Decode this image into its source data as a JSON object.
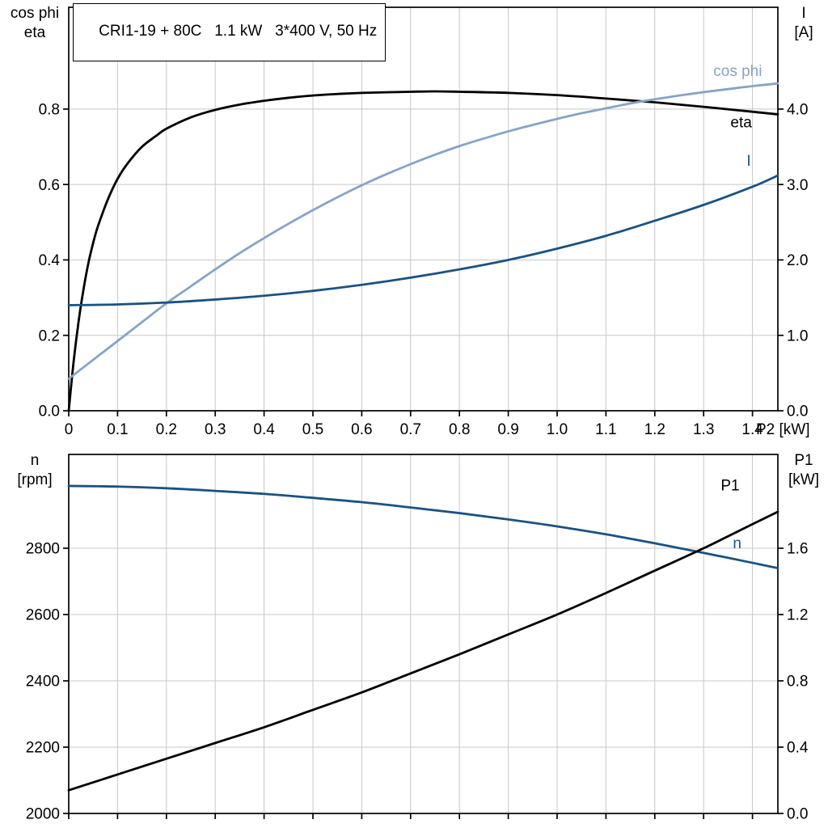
{
  "title": "CRI1-19 + 80C   1.1 kW   3*400 V, 50 Hz",
  "colors": {
    "black": "#000000",
    "light_blue": "#86A4C5",
    "dark_blue": "#1A5282",
    "grid": "#C8C8C8",
    "axis": "#000000",
    "background": "#FFFFFF"
  },
  "axis_corner_labels": {
    "top_left_1": "cos phi",
    "top_left_2": "eta",
    "top_right_1": "I",
    "top_right_2": "[A]",
    "bottom_left_1": "n",
    "bottom_left_2": "[rpm]",
    "bottom_right_1": "P1",
    "bottom_right_2": "[kW]"
  },
  "chart_data": [
    {
      "type": "line",
      "title": "CRI1-19 + 80C   1.1 kW   3*400 V, 50 Hz",
      "x_axis": {
        "label": "P2 [kW]",
        "min": 0,
        "max": 1.452,
        "ticks": [
          0,
          0.1,
          0.2,
          0.3,
          0.4,
          0.5,
          0.6,
          0.7,
          0.8,
          0.9,
          1.0,
          1.1,
          1.2,
          1.3,
          1.4
        ],
        "tick_labels": [
          "0",
          "0.1",
          "0.2",
          "0.3",
          "0.4",
          "0.5",
          "0.6",
          "0.7",
          "0.8",
          "0.9",
          "1.0",
          "1.1",
          "1.2",
          "1.3",
          "1.4"
        ],
        "show_tick_labels": true
      },
      "y_left_axis": {
        "label": "cos phi / eta",
        "min": 0,
        "max": 1.07,
        "ticks": [
          0,
          0.2,
          0.4,
          0.6,
          0.8
        ],
        "tick_labels": [
          "0.0",
          "0.2",
          "0.4",
          "0.6",
          "0.8"
        ]
      },
      "y_right_axis": {
        "label": "I [A]",
        "min": 0,
        "max": 5.35,
        "ticks": [
          0,
          1,
          2,
          3,
          4
        ],
        "tick_labels": [
          "0.0",
          "1.0",
          "2.0",
          "3.0",
          "4.0"
        ]
      },
      "grid": true,
      "legend_position": "curve-end-labels",
      "series": [
        {
          "name": "eta",
          "label": "eta",
          "color": "black",
          "y_axis": "left",
          "label_x": 1.355,
          "label_y": 0.752,
          "points": [
            [
              0,
              0
            ],
            [
              0.01,
              0.13
            ],
            [
              0.02,
              0.235
            ],
            [
              0.03,
              0.32
            ],
            [
              0.04,
              0.39
            ],
            [
              0.05,
              0.445
            ],
            [
              0.06,
              0.49
            ],
            [
              0.08,
              0.56
            ],
            [
              0.1,
              0.615
            ],
            [
              0.12,
              0.655
            ],
            [
              0.15,
              0.7
            ],
            [
              0.18,
              0.73
            ],
            [
              0.2,
              0.748
            ],
            [
              0.25,
              0.778
            ],
            [
              0.3,
              0.798
            ],
            [
              0.35,
              0.812
            ],
            [
              0.4,
              0.822
            ],
            [
              0.45,
              0.83
            ],
            [
              0.5,
              0.836
            ],
            [
              0.55,
              0.84
            ],
            [
              0.6,
              0.843
            ],
            [
              0.7,
              0.846
            ],
            [
              0.75,
              0.847
            ],
            [
              0.8,
              0.846
            ],
            [
              0.9,
              0.843
            ],
            [
              1.0,
              0.837
            ],
            [
              1.1,
              0.828
            ],
            [
              1.2,
              0.818
            ],
            [
              1.3,
              0.806
            ],
            [
              1.4,
              0.793
            ],
            [
              1.452,
              0.786
            ]
          ]
        },
        {
          "name": "cos-phi",
          "label": "cos phi",
          "color": "light_blue",
          "y_axis": "left",
          "label_x": 1.32,
          "label_y": 0.888,
          "points": [
            [
              0,
              0.085
            ],
            [
              0.05,
              0.135
            ],
            [
              0.1,
              0.185
            ],
            [
              0.15,
              0.235
            ],
            [
              0.2,
              0.285
            ],
            [
              0.25,
              0.33
            ],
            [
              0.3,
              0.375
            ],
            [
              0.35,
              0.418
            ],
            [
              0.4,
              0.458
            ],
            [
              0.45,
              0.496
            ],
            [
              0.5,
              0.532
            ],
            [
              0.55,
              0.566
            ],
            [
              0.6,
              0.598
            ],
            [
              0.65,
              0.627
            ],
            [
              0.7,
              0.654
            ],
            [
              0.75,
              0.679
            ],
            [
              0.8,
              0.702
            ],
            [
              0.85,
              0.722
            ],
            [
              0.9,
              0.741
            ],
            [
              0.95,
              0.758
            ],
            [
              1.0,
              0.774
            ],
            [
              1.05,
              0.789
            ],
            [
              1.1,
              0.802
            ],
            [
              1.15,
              0.815
            ],
            [
              1.2,
              0.826
            ],
            [
              1.25,
              0.836
            ],
            [
              1.3,
              0.845
            ],
            [
              1.35,
              0.853
            ],
            [
              1.4,
              0.861
            ],
            [
              1.452,
              0.868
            ]
          ]
        },
        {
          "name": "current",
          "label": "I",
          "color": "dark_blue",
          "y_axis": "right",
          "label_x": 1.388,
          "label_y": 3.25,
          "points": [
            [
              0,
              1.4
            ],
            [
              0.1,
              1.41
            ],
            [
              0.2,
              1.435
            ],
            [
              0.3,
              1.475
            ],
            [
              0.4,
              1.525
            ],
            [
              0.5,
              1.59
            ],
            [
              0.6,
              1.67
            ],
            [
              0.7,
              1.765
            ],
            [
              0.8,
              1.875
            ],
            [
              0.9,
              2.0
            ],
            [
              1.0,
              2.15
            ],
            [
              1.1,
              2.32
            ],
            [
              1.2,
              2.52
            ],
            [
              1.3,
              2.73
            ],
            [
              1.4,
              2.97
            ],
            [
              1.452,
              3.12
            ]
          ]
        }
      ]
    },
    {
      "type": "line",
      "title": "",
      "x_axis": {
        "label": "",
        "min": 0,
        "max": 1.452,
        "ticks": [
          0,
          0.1,
          0.2,
          0.3,
          0.4,
          0.5,
          0.6,
          0.7,
          0.8,
          0.9,
          1.0,
          1.1,
          1.2,
          1.3,
          1.4
        ],
        "tick_labels": [],
        "show_tick_labels": false
      },
      "y_left_axis": {
        "label": "n [rpm]",
        "min": 2000,
        "max": 3083,
        "ticks": [
          2000,
          2200,
          2400,
          2600,
          2800
        ],
        "tick_labels": [
          "2000",
          "2200",
          "2400",
          "2600",
          "2800"
        ]
      },
      "y_right_axis": {
        "label": "P1 [kW]",
        "min": 0,
        "max": 2.166,
        "ticks": [
          0,
          0.4,
          0.8,
          1.2,
          1.6
        ],
        "tick_labels": [
          "0.0",
          "0.4",
          "0.8",
          "1.2",
          "1.6"
        ]
      },
      "grid": true,
      "legend_position": "curve-end-labels",
      "series": [
        {
          "name": "speed",
          "label": "n",
          "color": "dark_blue",
          "y_axis": "left",
          "label_x": 1.36,
          "label_y": 2800,
          "points": [
            [
              0,
              2988
            ],
            [
              0.1,
              2986
            ],
            [
              0.2,
              2981
            ],
            [
              0.3,
              2973
            ],
            [
              0.4,
              2964
            ],
            [
              0.5,
              2952
            ],
            [
              0.6,
              2939
            ],
            [
              0.7,
              2923
            ],
            [
              0.8,
              2906
            ],
            [
              0.9,
              2887
            ],
            [
              1.0,
              2866
            ],
            [
              1.1,
              2842
            ],
            [
              1.2,
              2815
            ],
            [
              1.3,
              2786
            ],
            [
              1.4,
              2756
            ],
            [
              1.452,
              2740
            ]
          ]
        },
        {
          "name": "p1",
          "label": "P1",
          "color": "black",
          "y_axis": "right",
          "label_x": 1.335,
          "label_y": 1.95,
          "points": [
            [
              0,
              0.14
            ],
            [
              0.1,
              0.235
            ],
            [
              0.2,
              0.33
            ],
            [
              0.3,
              0.425
            ],
            [
              0.4,
              0.52
            ],
            [
              0.5,
              0.625
            ],
            [
              0.6,
              0.73
            ],
            [
              0.7,
              0.845
            ],
            [
              0.8,
              0.96
            ],
            [
              0.9,
              1.08
            ],
            [
              1.0,
              1.2
            ],
            [
              1.1,
              1.33
            ],
            [
              1.2,
              1.465
            ],
            [
              1.3,
              1.6
            ],
            [
              1.4,
              1.745
            ],
            [
              1.452,
              1.82
            ]
          ]
        }
      ]
    }
  ]
}
